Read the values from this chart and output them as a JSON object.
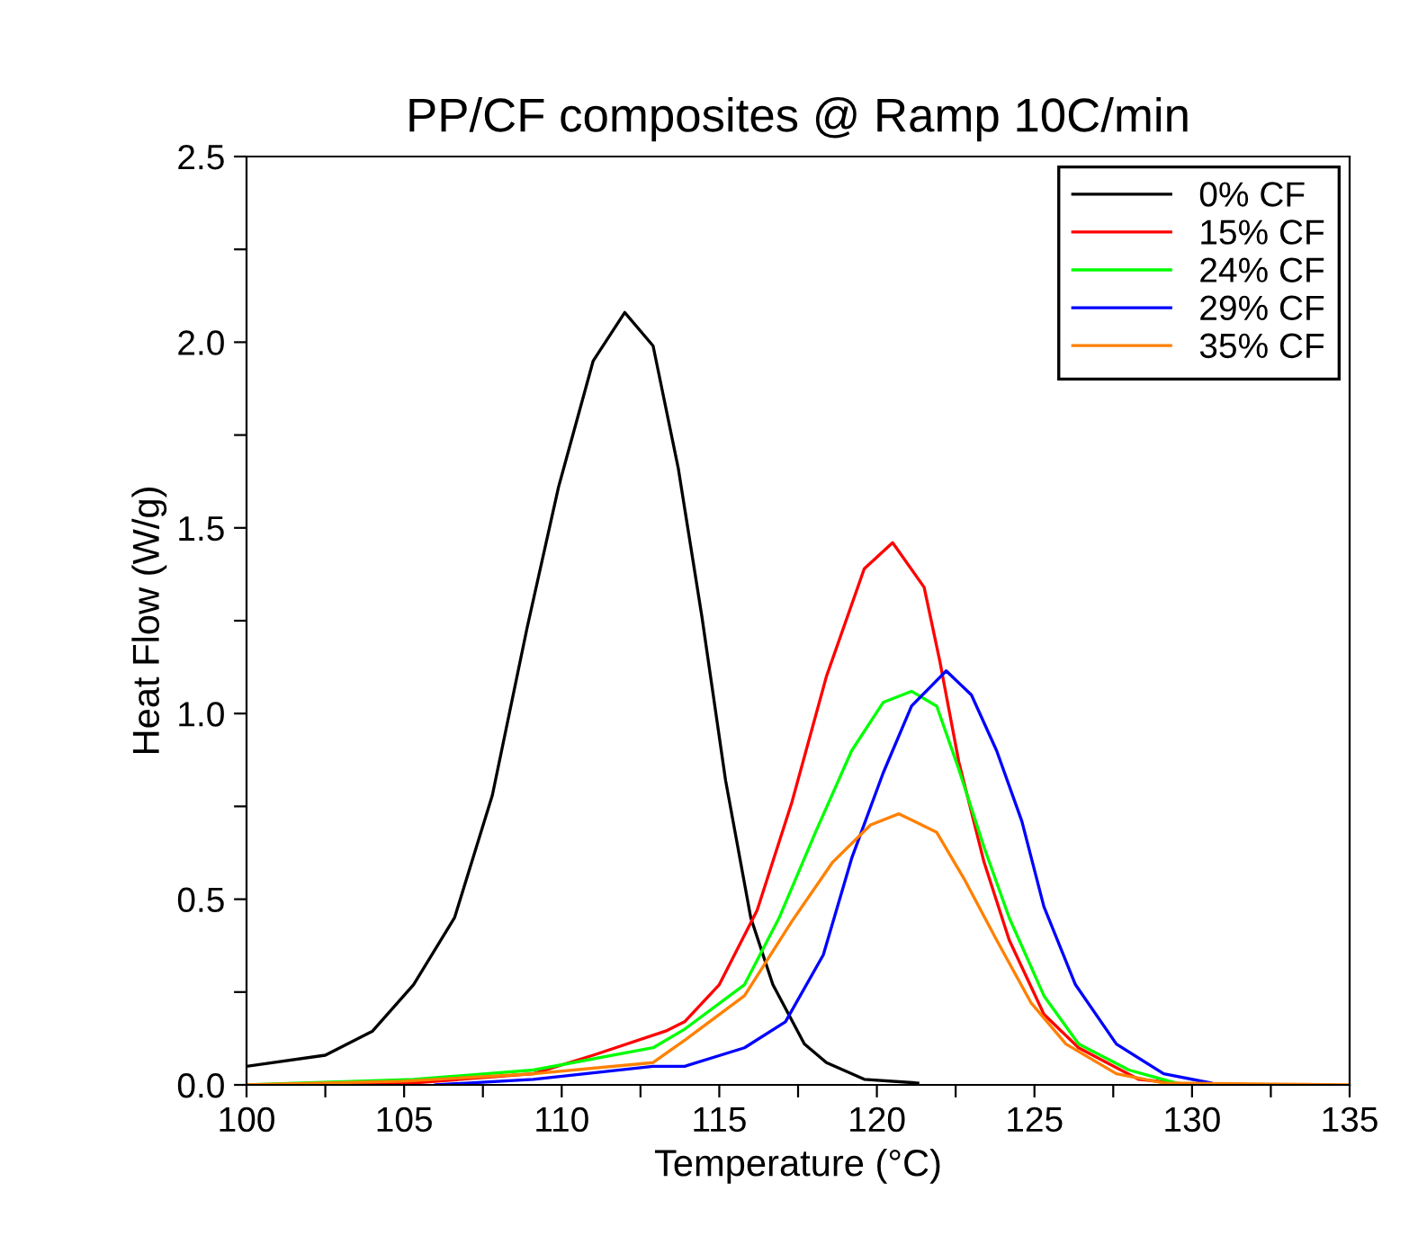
{
  "chart_data": {
    "type": "line",
    "title": "PP/CF composites @ Ramp 10C/min",
    "xlabel": "Temperature (°C)",
    "ylabel": "Heat Flow (W/g)",
    "xlim": [
      100,
      135
    ],
    "ylim": [
      0,
      2.5
    ],
    "xticks": [
      100,
      {
        "value": 102.5,
        "label": null
      },
      105,
      {
        "value": 107.5,
        "label": null
      },
      110,
      {
        "value": 112.5,
        "label": null
      },
      115,
      {
        "value": 117.5,
        "label": null
      },
      120,
      {
        "value": 122.5,
        "label": null
      },
      125,
      {
        "value": 127.5,
        "label": null
      },
      130,
      {
        "value": 132.5,
        "label": null
      },
      135
    ],
    "yticks": [
      {
        "value": 0,
        "label": "0.0"
      },
      {
        "value": 0.25,
        "label": null
      },
      {
        "value": 0.5,
        "label": "0.5"
      },
      {
        "value": 0.75,
        "label": null
      },
      {
        "value": 1.0,
        "label": "1.0"
      },
      {
        "value": 1.25,
        "label": null
      },
      {
        "value": 1.5,
        "label": "1.5"
      },
      {
        "value": 1.75,
        "label": null
      },
      {
        "value": 2.0,
        "label": "2.0"
      },
      {
        "value": 2.25,
        "label": null
      },
      {
        "value": 2.5,
        "label": "2.5"
      }
    ],
    "grid": false,
    "legend": "top right",
    "marker": "none",
    "line_style": "solid",
    "series": [
      {
        "name": "0% CF",
        "color": "#000000",
        "x": [
          100,
          102.5,
          104,
          105.3,
          106.6,
          107.8,
          108.9,
          109.9,
          111,
          112,
          112.9,
          113.7,
          114.45,
          115.2,
          116,
          116.7,
          117.7,
          118.4,
          119.6,
          121.3
        ],
        "values": [
          0.05,
          0.08,
          0.145,
          0.27,
          0.45,
          0.78,
          1.23,
          1.61,
          1.95,
          2.08,
          1.99,
          1.66,
          1.26,
          0.82,
          0.45,
          0.27,
          0.11,
          0.06,
          0.015,
          0.005
        ]
      },
      {
        "name": "15% CF",
        "color": "#ff0000",
        "x": [
          100,
          105.3,
          109.1,
          111,
          113.3,
          113.9,
          115,
          116.2,
          117.3,
          118.4,
          119.6,
          120.5,
          121.5,
          122,
          122.6,
          123.4,
          124.2,
          125.3,
          126.4,
          128.3,
          130
        ],
        "values": [
          0,
          0.005,
          0.03,
          0.08,
          0.145,
          0.17,
          0.27,
          0.47,
          0.76,
          1.1,
          1.39,
          1.46,
          1.34,
          1.14,
          0.87,
          0.6,
          0.39,
          0.19,
          0.1,
          0.015,
          0
        ]
      },
      {
        "name": "24% CF",
        "color": "#00ff00",
        "x": [
          100,
          105.3,
          109.1,
          112.9,
          113.9,
          115.8,
          116.9,
          118.05,
          119.2,
          120.2,
          121.1,
          121.9,
          122.6,
          123.4,
          124.2,
          125.3,
          126.4,
          128,
          129.5
        ],
        "values": [
          0,
          0.015,
          0.04,
          0.1,
          0.15,
          0.27,
          0.45,
          0.68,
          0.9,
          1.03,
          1.06,
          1.02,
          0.85,
          0.64,
          0.45,
          0.24,
          0.11,
          0.04,
          0.005
        ]
      },
      {
        "name": "29% CF",
        "color": "#0000ff",
        "x": [
          106,
          109.1,
          112.9,
          113.9,
          115.8,
          117.1,
          118.3,
          119.2,
          120.2,
          121.1,
          122.2,
          123,
          123.8,
          124.6,
          125.3,
          126.3,
          127.6,
          129.1,
          130.6
        ],
        "values": [
          0,
          0.015,
          0.05,
          0.05,
          0.1,
          0.17,
          0.35,
          0.61,
          0.84,
          1.02,
          1.115,
          1.05,
          0.9,
          0.71,
          0.48,
          0.27,
          0.11,
          0.03,
          0.005
        ]
      },
      {
        "name": "35% CF",
        "color": "#ff8000",
        "x": [
          100,
          105,
          109.1,
          112.9,
          113.9,
          115.8,
          117.3,
          118.6,
          119.8,
          120.7,
          121.9,
          122.8,
          123.8,
          124.9,
          126,
          127.6,
          129.1,
          135
        ],
        "values": [
          0,
          0.01,
          0.03,
          0.06,
          0.12,
          0.24,
          0.44,
          0.6,
          0.7,
          0.73,
          0.68,
          0.55,
          0.39,
          0.22,
          0.11,
          0.03,
          0.005,
          0
        ]
      }
    ]
  }
}
